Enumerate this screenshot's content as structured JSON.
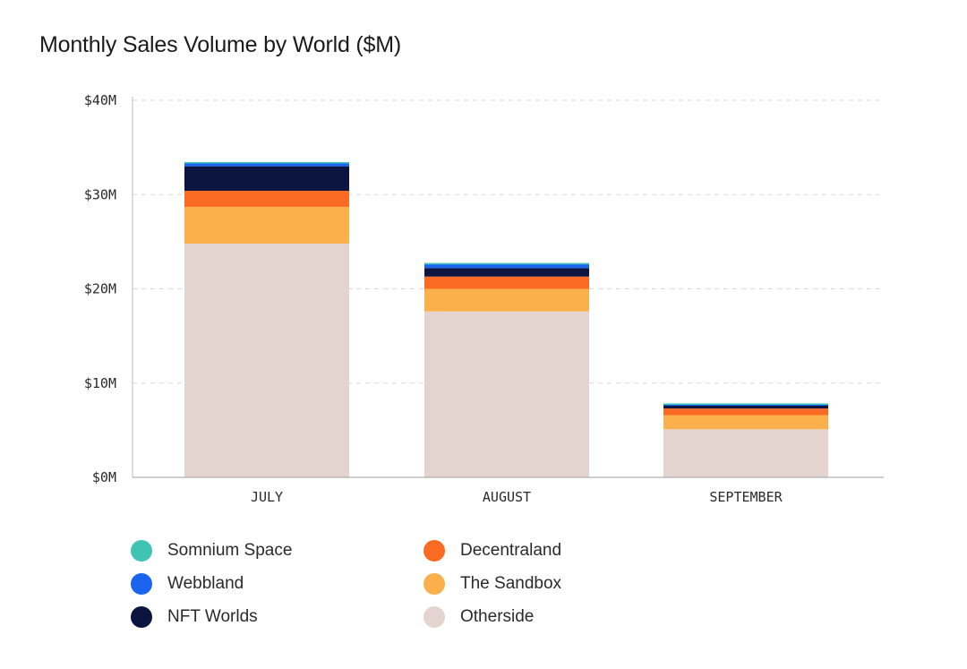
{
  "chart_data": {
    "type": "bar",
    "stacked": true,
    "title": "Monthly Sales Volume by World ($M)",
    "xlabel": "",
    "ylabel": "",
    "ylim": [
      0,
      40
    ],
    "yticks": [
      0,
      10,
      20,
      30,
      40
    ],
    "ytick_labels": [
      "$0M",
      "$10M",
      "$20M",
      "$30M",
      "$40M"
    ],
    "grid": true,
    "legend_position": "bottom",
    "categories": [
      "JULY",
      "AUGUST",
      "SEPTEMBER"
    ],
    "series": [
      {
        "name": "Otherside",
        "color": "#e3d4cf",
        "values": [
          24.8,
          17.6,
          5.1
        ]
      },
      {
        "name": "The Sandbox",
        "color": "#fbb04c",
        "values": [
          3.9,
          2.4,
          1.5
        ]
      },
      {
        "name": "Decentraland",
        "color": "#fb6a22",
        "values": [
          1.7,
          1.3,
          0.7
        ]
      },
      {
        "name": "NFT Worlds",
        "color": "#0c1540",
        "values": [
          2.6,
          0.9,
          0.3
        ]
      },
      {
        "name": "Webbland",
        "color": "#1a64f0",
        "values": [
          0.3,
          0.4,
          0.1
        ]
      },
      {
        "name": "Somnium Space",
        "color": "#3fc4b4",
        "values": [
          0.05,
          0.05,
          0.05
        ]
      }
    ],
    "legend_order": [
      "Somnium Space",
      "Decentraland",
      "Webbland",
      "The Sandbox",
      "NFT Worlds",
      "Otherside"
    ]
  }
}
